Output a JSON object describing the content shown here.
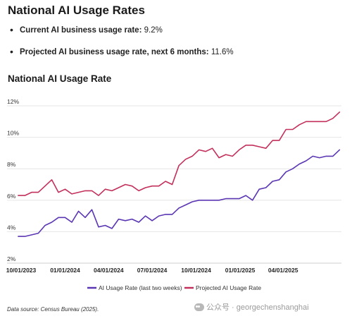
{
  "header": {
    "title": "National AI Usage Rates"
  },
  "bullets": [
    {
      "label": "Current AI business usage rate:",
      "value": "9.2%"
    },
    {
      "label": "Projected AI business usage rate, next 6 months:",
      "value": "11.6%"
    }
  ],
  "chart_data": {
    "type": "line",
    "title": "National AI Usage Rate",
    "xlabel": "",
    "ylabel": "",
    "ylim": [
      2,
      12
    ],
    "xlim": [
      "2023-10-01",
      "2025-08-01"
    ],
    "y_ticks": [
      2,
      4,
      6,
      8,
      10,
      12
    ],
    "y_tick_labels": [
      "2%",
      "4%",
      "6%",
      "8%",
      "10%",
      "12%"
    ],
    "x_ticks": [
      "2023-10-01",
      "2024-01-01",
      "2024-04-01",
      "2024-07-01",
      "2024-10-01",
      "2025-01-01",
      "2025-04-01"
    ],
    "x_tick_labels": [
      "10/01/2023",
      "01/01/2024",
      "04/01/2024",
      "07/01/2024",
      "10/01/2024",
      "01/01/2025",
      "04/01/2025"
    ],
    "grid": "horizontal",
    "legend": "bottom-center",
    "series": [
      {
        "name": "AI Usage Rate (last two weeks)",
        "color": "#5b36b3",
        "x": [
          "2023-09-25",
          "2023-10-09",
          "2023-10-23",
          "2023-11-06",
          "2023-11-20",
          "2023-12-04",
          "2023-12-18",
          "2024-01-01",
          "2024-01-15",
          "2024-01-29",
          "2024-02-12",
          "2024-02-26",
          "2024-03-11",
          "2024-03-25",
          "2024-04-08",
          "2024-04-22",
          "2024-05-06",
          "2024-05-20",
          "2024-06-03",
          "2024-06-17",
          "2024-07-01",
          "2024-07-15",
          "2024-07-29",
          "2024-08-12",
          "2024-08-26",
          "2024-09-09",
          "2024-09-23",
          "2024-10-07",
          "2024-10-21",
          "2024-11-04",
          "2024-11-18",
          "2024-12-02",
          "2024-12-16",
          "2024-12-30",
          "2025-01-13",
          "2025-01-27",
          "2025-02-10",
          "2025-02-24",
          "2025-03-10",
          "2025-03-24",
          "2025-04-07",
          "2025-04-21",
          "2025-05-05",
          "2025-05-19",
          "2025-06-02",
          "2025-06-16",
          "2025-06-30",
          "2025-07-14",
          "2025-07-28"
        ],
        "values": [
          3.7,
          3.7,
          3.8,
          3.9,
          4.4,
          4.6,
          4.9,
          4.9,
          4.6,
          5.3,
          4.9,
          5.4,
          4.3,
          4.4,
          4.2,
          4.8,
          4.7,
          4.8,
          4.6,
          5.0,
          4.7,
          5.0,
          5.1,
          5.1,
          5.5,
          5.7,
          5.9,
          6.0,
          6.0,
          6.0,
          6.0,
          6.1,
          6.1,
          6.1,
          6.3,
          6.0,
          6.7,
          6.8,
          7.2,
          7.3,
          7.8,
          8.0,
          8.3,
          8.5,
          8.8,
          8.7,
          8.8,
          8.8,
          9.2
        ]
      },
      {
        "name": "Projected AI Usage Rate",
        "color": "#c2305b",
        "x": [
          "2023-09-25",
          "2023-10-09",
          "2023-10-23",
          "2023-11-06",
          "2023-11-20",
          "2023-12-04",
          "2023-12-18",
          "2024-01-01",
          "2024-01-15",
          "2024-01-29",
          "2024-02-12",
          "2024-02-26",
          "2024-03-11",
          "2024-03-25",
          "2024-04-08",
          "2024-04-22",
          "2024-05-06",
          "2024-05-20",
          "2024-06-03",
          "2024-06-17",
          "2024-07-01",
          "2024-07-15",
          "2024-07-29",
          "2024-08-12",
          "2024-08-26",
          "2024-09-09",
          "2024-09-23",
          "2024-10-07",
          "2024-10-21",
          "2024-11-04",
          "2024-11-18",
          "2024-12-02",
          "2024-12-16",
          "2024-12-30",
          "2025-01-13",
          "2025-01-27",
          "2025-02-10",
          "2025-02-24",
          "2025-03-10",
          "2025-03-24",
          "2025-04-07",
          "2025-04-21",
          "2025-05-05",
          "2025-05-19",
          "2025-06-02",
          "2025-06-16",
          "2025-06-30",
          "2025-07-14",
          "2025-07-28"
        ],
        "values": [
          6.3,
          6.3,
          6.5,
          6.5,
          6.9,
          7.3,
          6.5,
          6.7,
          6.4,
          6.5,
          6.6,
          6.6,
          6.3,
          6.7,
          6.6,
          6.8,
          7.0,
          6.9,
          6.6,
          6.8,
          6.9,
          6.9,
          7.2,
          7.0,
          8.2,
          8.6,
          8.8,
          9.2,
          9.1,
          9.3,
          8.7,
          8.9,
          8.8,
          9.2,
          9.5,
          9.5,
          9.4,
          9.3,
          9.8,
          9.8,
          10.5,
          10.5,
          10.8,
          11.0,
          11.0,
          11.0,
          11.0,
          11.2,
          11.6
        ]
      }
    ]
  },
  "footer": {
    "source": "Data source: Census Bureau (2025).",
    "watermark": "公众号 · georgechenshanghai"
  }
}
